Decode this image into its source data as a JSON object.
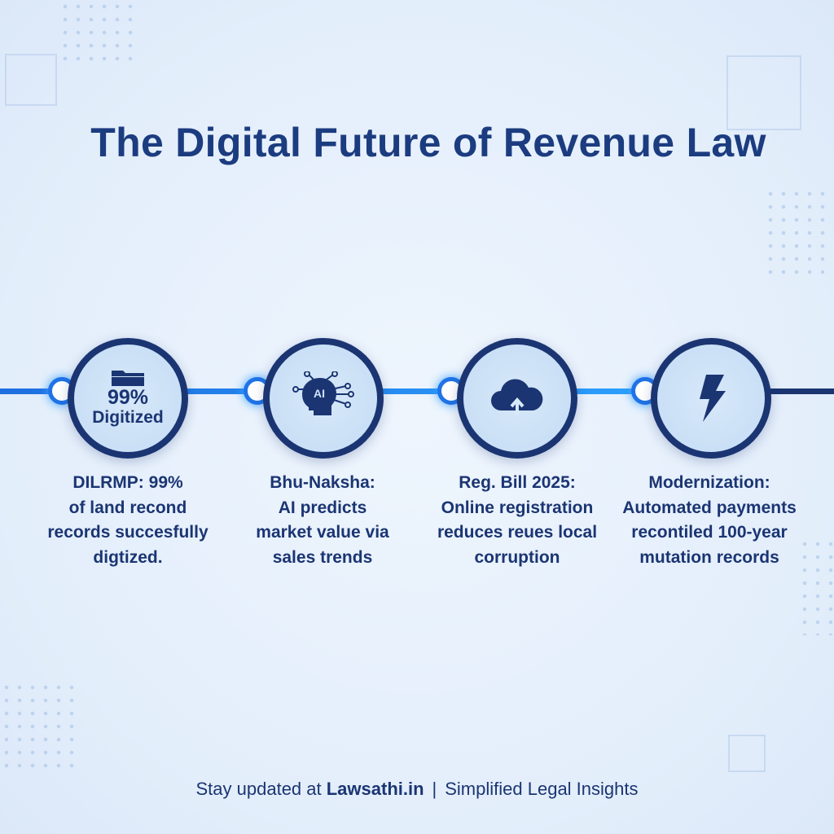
{
  "title": "The Digital Future of Revenue Law",
  "colors": {
    "primary": "#1b3573",
    "accent": "#1f73e6",
    "background": "#e6f0fb"
  },
  "steps": [
    {
      "icon": "folder-icon",
      "stat": "99%",
      "stat_label": "Digitized",
      "lines": [
        "DILRMP: 99%",
        "of land recond",
        "records succesfully",
        "digtized."
      ]
    },
    {
      "icon": "ai-head-icon",
      "icon_text": "AI",
      "lines": [
        "Bhu-Naksha:",
        "AI predicts",
        "market value via",
        "sales trends"
      ]
    },
    {
      "icon": "cloud-upload-icon",
      "lines": [
        "Reg. Bill 2025:",
        "Online registration",
        "reduces reues local",
        "corruption"
      ]
    },
    {
      "icon": "lightning-icon",
      "lines": [
        "Modernization:",
        "Automated payments",
        "recontiled 100-year",
        "mutation records"
      ]
    }
  ],
  "footer": {
    "prefix": "Stay updated at ",
    "site": "Lawsathi.in",
    "separator": "|",
    "tagline": "Simplified Legal Insights"
  }
}
